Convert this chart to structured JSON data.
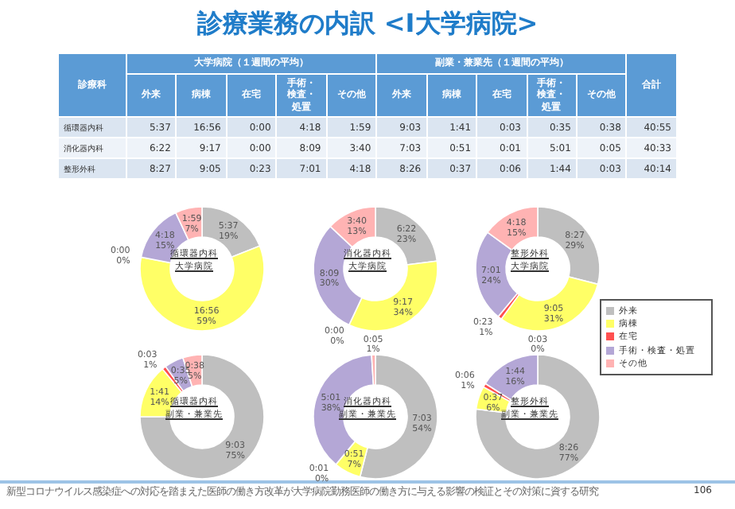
{
  "chart_data": [
    {
      "type": "other",
      "title": "診療業務の内訳 <I大学病院>",
      "annotations": [
        "大学病院（１週間の平均）",
        "副業・兼業先（１週間の平均）",
        "診療科",
        "外来",
        "病棟",
        "在宅",
        "手術・検査・処置",
        "その他",
        "外来",
        "病棟",
        "在宅",
        "手術・検査・処置",
        "その他",
        "合計",
        "循環器内科",
        "5:37",
        "16:56",
        "0:00",
        "4:18",
        "1:59",
        "9:03",
        "1:41",
        "0:03",
        "0:35",
        "0:38",
        "40:55",
        "消化器内科",
        "6:22",
        "9:17",
        "0:00",
        "8:09",
        "3:40",
        "7:03",
        "0:51",
        "0:01",
        "5:01",
        "0:05",
        "40:33",
        "整形外科",
        "8:27",
        "9:05",
        "0:23",
        "7:01",
        "4:18",
        "8:26",
        "0:37",
        "0:06",
        "1:44",
        "0:03",
        "40:14",
        "新型コロナウイルス感染症への対応を踏まえた医師の働き方改革が大学病院勤務医師の働き方に与える影響の検証とその対策に資する研究",
        "106"
      ]
    },
    {
      "type": "donut",
      "title": "循環器内科",
      "subtitle": "大学病院",
      "values": [
        19,
        59,
        0,
        15,
        7
      ],
      "colors": [
        "#bfbfbf",
        "#ffff66",
        "#ff5050",
        "#b4a7d6",
        "#ffb3b3"
      ],
      "value_labels": [
        "5:37\n19%",
        "16:56\n59%",
        "0:00\n0%",
        "4:18\n15%",
        "1:59\n7%"
      ]
    },
    {
      "type": "donut",
      "title": "消化器内科",
      "subtitle": "大学病院",
      "values": [
        23,
        34,
        0,
        30,
        13
      ],
      "colors": [
        "#bfbfbf",
        "#ffff66",
        "#ff5050",
        "#b4a7d6",
        "#ffb3b3"
      ],
      "value_labels": [
        "6:22\n23%",
        "9:17\n34%",
        "0:00\n0%",
        "8:09\n30%",
        "3:40\n13%"
      ]
    },
    {
      "type": "donut",
      "title": "整形外科",
      "subtitle": "大学病院",
      "legend": "right",
      "categories": [
        "外来",
        "病棟",
        "在宅",
        "手術・検査・処置",
        "その他"
      ],
      "values": [
        29,
        31,
        1,
        24,
        15
      ],
      "colors": [
        "#bfbfbf",
        "#ffff66",
        "#ff5050",
        "#b4a7d6",
        "#ffb3b3"
      ],
      "value_labels": [
        "8:27\n29%",
        "9:05\n31%",
        "0:23\n1%",
        "7:01\n24%",
        "4:18\n15%"
      ]
    },
    {
      "type": "donut",
      "title": "循環器内科",
      "subtitle": "副業・兼業先",
      "values": [
        75,
        14,
        1,
        5,
        5
      ],
      "colors": [
        "#bfbfbf",
        "#ffff66",
        "#ff5050",
        "#b4a7d6",
        "#ffb3b3"
      ],
      "value_labels": [
        "9:03\n75%",
        "1:41\n14%",
        "0:03\n1%",
        "0:35\n5%",
        "0:38\n5%"
      ]
    },
    {
      "type": "donut",
      "title": "消化器内科",
      "subtitle": "副業・兼業先",
      "values": [
        54,
        7,
        0,
        38,
        1
      ],
      "colors": [
        "#bfbfbf",
        "#ffff66",
        "#ff5050",
        "#b4a7d6",
        "#ffb3b3"
      ],
      "value_labels": [
        "7:03\n54%",
        "0:51\n7%",
        "0:01\n0%",
        "5:01\n38%",
        "0:05\n1%"
      ]
    },
    {
      "type": "donut",
      "title": "整形外科",
      "subtitle": "副業・兼業先",
      "values": [
        77,
        6,
        1,
        16,
        0
      ],
      "colors": [
        "#bfbfbf",
        "#ffff66",
        "#ff5050",
        "#b4a7d6",
        "#ffb3b3"
      ],
      "value_labels": [
        "8:26\n77%",
        "0:37\n6%",
        "0:06\n1%",
        "1:44\n16%",
        "0:03\n0%"
      ]
    }
  ]
}
